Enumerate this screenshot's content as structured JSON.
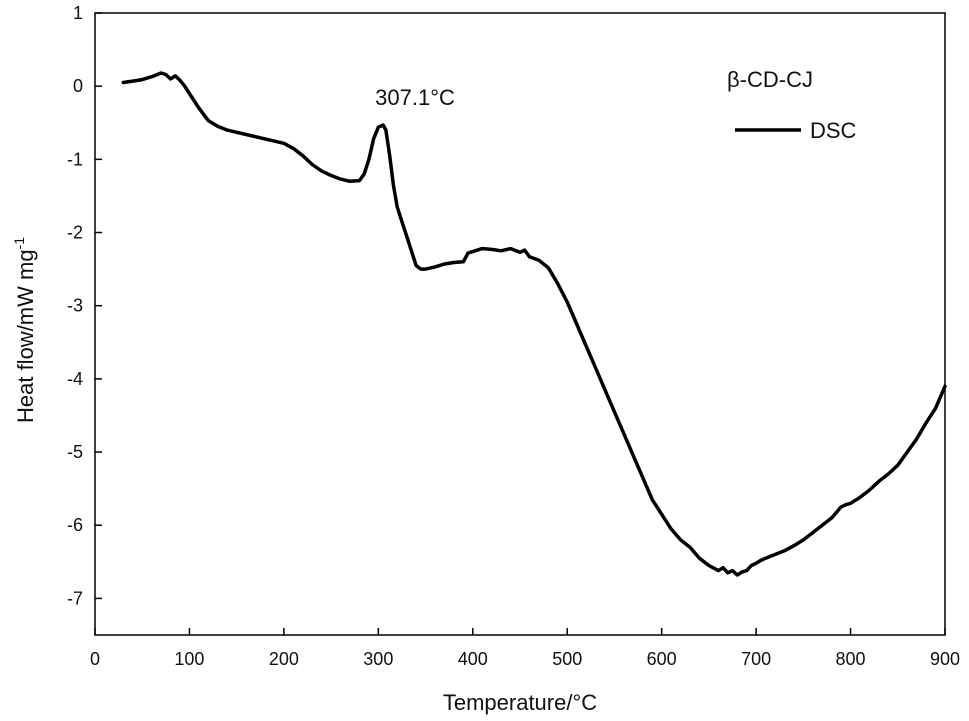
{
  "chart_data": {
    "type": "line",
    "xlabel": "Temperature/°C",
    "ylabel_main": "Heat flow/mW mg",
    "ylabel_sup": "-1",
    "xlim": [
      0,
      900
    ],
    "ylim": [
      -7.5,
      1
    ],
    "xticks": [
      0,
      100,
      200,
      300,
      400,
      500,
      600,
      700,
      800,
      900
    ],
    "xtick_labels": [
      "0",
      "100",
      "200",
      "300",
      "400",
      "500",
      "600",
      "700",
      "800",
      "900"
    ],
    "yticks": [
      1,
      0,
      -1,
      -2,
      -3,
      -4,
      -5,
      -6,
      -7
    ],
    "ytick_labels": [
      "1",
      "0",
      "-1",
      "-2",
      "-3",
      "-4",
      "-5",
      "-6",
      "-7"
    ],
    "grid": false,
    "legend": {
      "title": "β-CD-CJ",
      "position": "top-right"
    },
    "annotations": [
      {
        "text": "307.1°C",
        "x": 307.1,
        "y": -0.53
      }
    ],
    "series": [
      {
        "name": "DSC",
        "color": "#000000",
        "x": [
          30,
          40,
          50,
          60,
          70,
          75,
          80,
          85,
          90,
          95,
          100,
          110,
          120,
          130,
          140,
          150,
          160,
          180,
          200,
          210,
          220,
          230,
          240,
          250,
          260,
          270,
          280,
          285,
          290,
          295,
          300,
          305,
          308,
          312,
          316,
          320,
          325,
          330,
          340,
          345,
          350,
          360,
          370,
          380,
          390,
          395,
          400,
          405,
          410,
          420,
          430,
          440,
          450,
          455,
          460,
          470,
          480,
          490,
          500,
          510,
          520,
          530,
          540,
          550,
          560,
          570,
          580,
          590,
          600,
          610,
          620,
          630,
          640,
          650,
          660,
          665,
          670,
          675,
          680,
          685,
          690,
          695,
          700,
          705,
          710,
          720,
          730,
          740,
          750,
          760,
          770,
          780,
          790,
          795,
          800,
          810,
          820,
          830,
          840,
          850,
          860,
          870,
          880,
          890,
          900
        ],
        "y": [
          0.05,
          0.07,
          0.09,
          0.13,
          0.18,
          0.16,
          0.1,
          0.14,
          0.08,
          0.0,
          -0.1,
          -0.3,
          -0.47,
          -0.55,
          -0.6,
          -0.63,
          -0.66,
          -0.72,
          -0.78,
          -0.85,
          -0.95,
          -1.07,
          -1.16,
          -1.22,
          -1.27,
          -1.3,
          -1.29,
          -1.2,
          -1.0,
          -0.72,
          -0.56,
          -0.53,
          -0.6,
          -0.95,
          -1.35,
          -1.65,
          -1.85,
          -2.05,
          -2.45,
          -2.5,
          -2.5,
          -2.47,
          -2.43,
          -2.41,
          -2.4,
          -2.28,
          -2.26,
          -2.24,
          -2.22,
          -2.23,
          -2.25,
          -2.22,
          -2.27,
          -2.24,
          -2.33,
          -2.38,
          -2.48,
          -2.7,
          -2.95,
          -3.25,
          -3.55,
          -3.85,
          -4.15,
          -4.45,
          -4.75,
          -5.05,
          -5.35,
          -5.65,
          -5.85,
          -6.05,
          -6.2,
          -6.3,
          -6.45,
          -6.55,
          -6.62,
          -6.58,
          -6.65,
          -6.62,
          -6.68,
          -6.64,
          -6.62,
          -6.55,
          -6.52,
          -6.48,
          -6.45,
          -6.4,
          -6.35,
          -6.28,
          -6.2,
          -6.1,
          -6.0,
          -5.9,
          -5.75,
          -5.72,
          -5.7,
          -5.62,
          -5.52,
          -5.4,
          -5.3,
          -5.18,
          -5.0,
          -4.82,
          -4.6,
          -4.4,
          -4.1
        ]
      }
    ]
  }
}
